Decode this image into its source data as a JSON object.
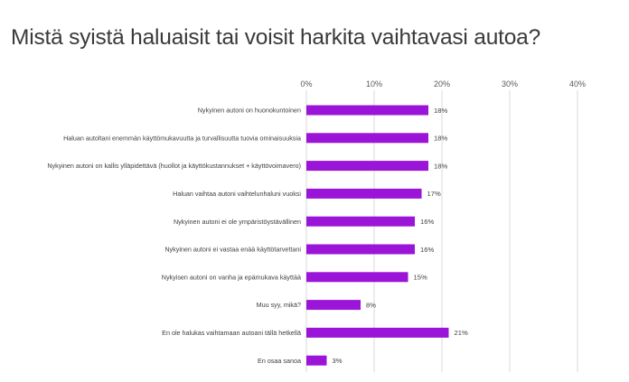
{
  "title": "Mistä syistä haluaisit tai voisit harkita vaihtavasi autoa?",
  "colors": {
    "bar": "#9b15d8",
    "grid": "#d9d9d9",
    "text": "#404040"
  },
  "chart_data": {
    "type": "bar",
    "orientation": "horizontal",
    "title": "Mistä syistä haluaisit tai voisit harkita vaihtavasi autoa?",
    "xlabel": "",
    "ylabel": "",
    "xlim": [
      0,
      40
    ],
    "ticks": [
      0,
      10,
      20,
      30,
      40
    ],
    "tick_labels": [
      "0%",
      "10%",
      "20%",
      "30%",
      "40%"
    ],
    "grid": true,
    "categories": [
      "Nykyinen autoni on huonokuntoinen",
      "Haluan autoltani enemmän käyttömukavuutta ja turvallisuutta tuovia ominaisuuksia",
      "Nykyinen autoni on kallis ylläpidettävä (huollot ja käyttökustannukset + käyttövoimavero)",
      "Haluan vaihtaa autoni vaihtelunhaluni vuoksi",
      "Nykyinen autoni ei ole ympäristöystävällinen",
      "Nykyinen autoni ei vastaa enää käyttötarvettani",
      "Nykyisen autoni on vanha ja epämukava käyttää",
      "Muu syy, mikä?",
      "En ole halukas vaihtamaan autoani tällä hetkellä",
      "En osaa sanoa"
    ],
    "values": [
      18,
      18,
      18,
      17,
      16,
      16,
      15,
      8,
      21,
      3
    ],
    "value_labels": [
      "18%",
      "18%",
      "18%",
      "17%",
      "16%",
      "16%",
      "15%",
      "8%",
      "21%",
      "3%"
    ]
  }
}
